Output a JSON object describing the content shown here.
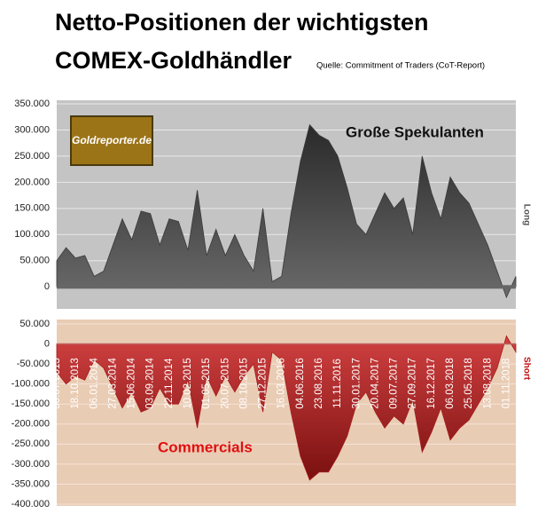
{
  "chart_data": [
    {
      "type": "area",
      "title": "Netto-Positionen der wichtigsten COMEX-Goldhändler",
      "subtitle": "Quelle: Commitment of Traders (CoT-Report)",
      "logo": "Goldreporter.de",
      "annotation": "Große Spekulanten",
      "axis_label": "Long",
      "color": "#3a3a3a",
      "values": [
        50000,
        75000,
        55000,
        60000,
        20000,
        30000,
        80000,
        130000,
        90000,
        145000,
        140000,
        80000,
        130000,
        125000,
        70000,
        185000,
        60000,
        110000,
        60000,
        100000,
        60000,
        30000,
        150000,
        10000,
        20000,
        140000,
        240000,
        310000,
        290000,
        280000,
        250000,
        190000,
        120000,
        100000,
        140000,
        180000,
        150000,
        170000,
        100000,
        250000,
        180000,
        130000,
        210000,
        180000,
        160000,
        120000,
        80000,
        30000,
        -20000,
        20000
      ],
      "ylim": [
        -37000,
        350000
      ],
      "yticks": [
        0,
        {
          "value": 50000,
          "label": "50.000"
        },
        {
          "value": 100000,
          "label": "100.000"
        },
        {
          "value": 150000,
          "label": "150.000"
        },
        {
          "value": 200000,
          "label": "200.000"
        },
        {
          "value": 250000,
          "label": "250.000"
        },
        {
          "value": 300000,
          "label": "300.000"
        },
        {
          "value": 350000,
          "label": "350.000"
        }
      ],
      "grid": true
    },
    {
      "type": "area",
      "annotation": "Commercials",
      "axis_label": "Short",
      "color": "#a81c1c",
      "categories": [
        "30.07.2013",
        null,
        "18.10.2013",
        null,
        "06.01.2014",
        null,
        "27.03.2014",
        null,
        "15.06.2014",
        null,
        "03.09.2014",
        null,
        "22.11.2014",
        null,
        "10.02.2015",
        null,
        "01.05.2015",
        null,
        "20.07.2015",
        null,
        "08.10.2015",
        null,
        "27.12.2015",
        null,
        "16.03.2016",
        null,
        "04.06.2016",
        null,
        "23.08.2016",
        null,
        "11.11.2016",
        null,
        "30.01.2017",
        null,
        "20.04.2017",
        null,
        "09.07.2017",
        null,
        "27.09.2017",
        null,
        "16.12.2017",
        null,
        "06.03.2018",
        null,
        "25.05.2018",
        null,
        "13.08.2018",
        null,
        "01.11.2018",
        null
      ],
      "values": [
        -70000,
        -100000,
        -80000,
        -90000,
        -40000,
        -60000,
        -110000,
        -160000,
        -120000,
        -170000,
        -160000,
        -110000,
        -150000,
        -150000,
        -90000,
        -210000,
        -80000,
        -130000,
        -80000,
        -120000,
        -80000,
        -50000,
        -170000,
        -20000,
        -40000,
        -170000,
        -280000,
        -340000,
        -320000,
        -320000,
        -280000,
        -230000,
        -150000,
        -120000,
        -170000,
        -210000,
        -180000,
        -200000,
        -140000,
        -270000,
        -220000,
        -160000,
        -240000,
        -210000,
        -190000,
        -150000,
        -110000,
        -60000,
        20000,
        -20000
      ],
      "ylim": [
        -400000,
        50000
      ],
      "yticks": [
        {
          "value": 50000,
          "label": "50.000"
        },
        0,
        {
          "value": -50000,
          "label": "-50.000"
        },
        {
          "value": -100000,
          "label": "-100.000"
        },
        {
          "value": -150000,
          "label": "-150.000"
        },
        {
          "value": -200000,
          "label": "-200.000"
        },
        {
          "value": -250000,
          "label": "-250.000"
        },
        {
          "value": -300000,
          "label": "-300.000"
        },
        {
          "value": -350000,
          "label": "-350.000"
        },
        {
          "value": -400000,
          "label": "-400.000"
        }
      ],
      "grid": true
    }
  ]
}
